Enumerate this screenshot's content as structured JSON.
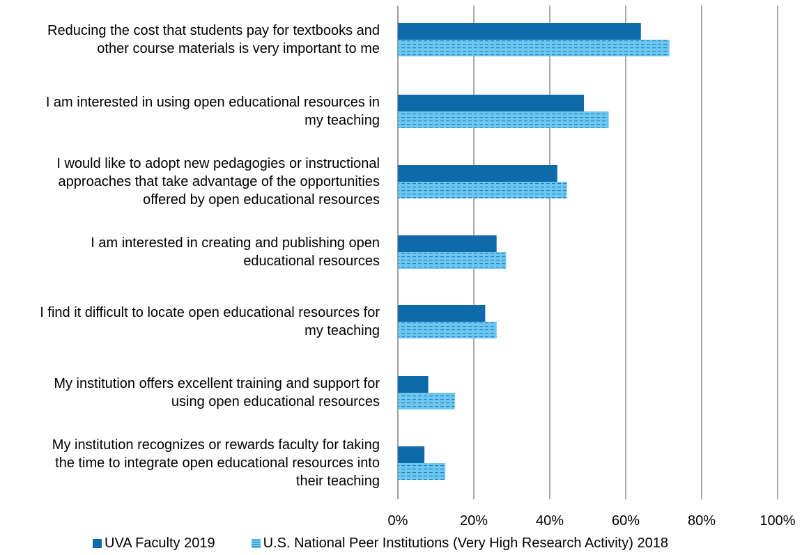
{
  "chart_data": {
    "type": "bar",
    "orientation": "horizontal",
    "categories": [
      "Reducing the cost that students pay for textbooks and other course materials is very important to me",
      "I am interested in using open educational resources in my teaching",
      "I would like to adopt new pedagogies or instructional approaches that take advantage of the opportunities offered by open educational resources",
      "I am interested in creating and publishing open educational resources",
      "I find it difficult to locate open educational resources for my teaching",
      "My institution offers excellent training and support for using open educational resources",
      "My institution recognizes or rewards faculty for taking the time to integrate open educational resources into their teaching"
    ],
    "category_lines": [
      [
        "Reducing the cost that students pay for textbooks and",
        "other course materials is very important to me"
      ],
      [
        "I am interested in using open educational resources in",
        "my teaching"
      ],
      [
        "I would like to adopt new pedagogies or instructional",
        "approaches that take advantage of the opportunities",
        "offered by open educational resources"
      ],
      [
        "I am interested in creating and publishing open",
        "educational resources"
      ],
      [
        "I find it difficult to locate open educational resources for",
        "my teaching"
      ],
      [
        "My institution offers excellent training and support for",
        "using open educational resources"
      ],
      [
        "My institution recognizes or rewards faculty for taking",
        "the time to integrate open educational resources into",
        "their teaching"
      ]
    ],
    "series": [
      {
        "name": "UVA Faculty 2019",
        "color": "#0e6aa8",
        "pattern": "solid",
        "values": [
          64,
          49,
          42,
          26,
          23,
          8,
          7
        ]
      },
      {
        "name": "U.S. National Peer Institutions (Very High Research Activity) 2018",
        "color": "#6ec7ef",
        "pattern": "dashed-horizontal",
        "values": [
          71.5,
          55.5,
          44.5,
          28.5,
          26,
          15,
          12.5
        ]
      }
    ],
    "xlim": [
      0,
      100
    ],
    "x_ticks": [
      "0%",
      "20%",
      "40%",
      "60%",
      "80%",
      "100%"
    ],
    "x_tick_values": [
      0,
      20,
      40,
      60,
      80,
      100
    ],
    "grid": "vertical",
    "legend_position": "bottom",
    "title": "",
    "xlabel": "",
    "ylabel": ""
  },
  "legend": {
    "uva_label": "UVA Faculty 2019",
    "peer_label": "U.S. National Peer Institutions (Very High Research Activity) 2018"
  }
}
